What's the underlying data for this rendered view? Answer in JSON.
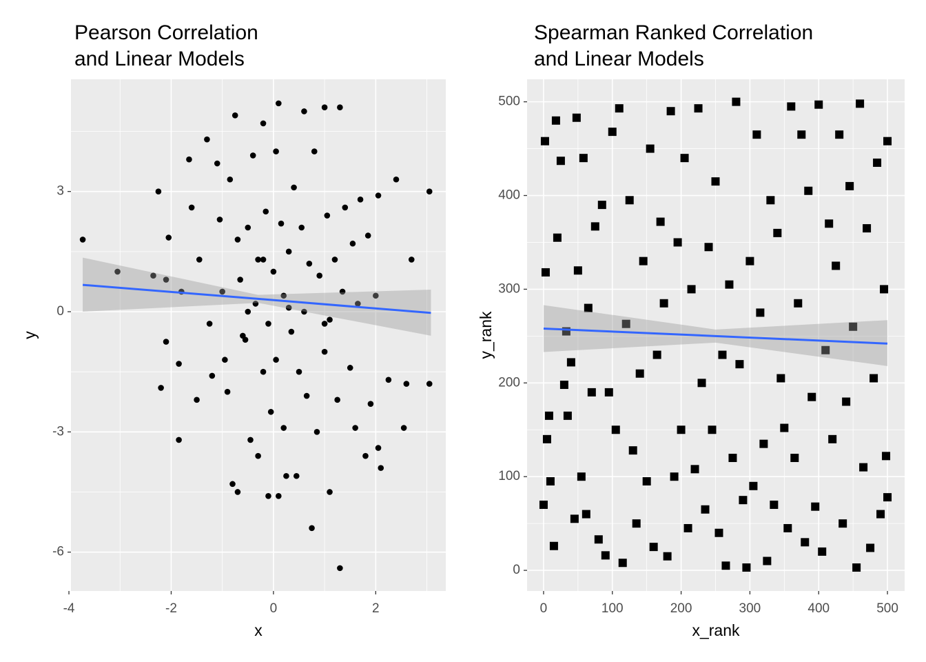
{
  "chart_data": [
    {
      "type": "scatter",
      "title": [
        "Pearson Correlation",
        "and Linear Models"
      ],
      "x_label": "x",
      "y_label": "y",
      "xlim": [
        -3.96,
        3.37
      ],
      "ylim": [
        -6.97,
        5.8
      ],
      "xticks": [
        -4,
        -2,
        0,
        2
      ],
      "yticks": [
        -6,
        -3,
        0,
        3
      ],
      "grid": true,
      "color": "#000000",
      "marker": "circle",
      "x": [
        -3.73,
        -3.05,
        -2.35,
        -2.25,
        -2.2,
        -2.1,
        -2.05,
        -2.1,
        -1.85,
        -1.85,
        -1.8,
        -1.65,
        -1.6,
        -1.5,
        -1.45,
        -1.3,
        -1.25,
        -1.2,
        -1.1,
        -1.05,
        -1.0,
        -0.95,
        -0.9,
        -0.85,
        -0.8,
        -0.75,
        -0.7,
        -0.7,
        -0.65,
        -0.6,
        -0.55,
        -0.5,
        -0.45,
        -0.4,
        -0.35,
        -0.3,
        -0.3,
        -0.2,
        -0.2,
        -0.15,
        -0.1,
        -0.05,
        -0.1,
        0.0,
        0.05,
        0.05,
        0.1,
        0.1,
        0.15,
        0.2,
        0.2,
        0.25,
        0.3,
        0.35,
        0.4,
        0.45,
        0.5,
        0.55,
        0.6,
        0.6,
        0.65,
        0.7,
        0.75,
        0.8,
        0.85,
        0.9,
        1.0,
        1.0,
        1.05,
        1.1,
        1.1,
        1.2,
        1.25,
        1.3,
        1.3,
        1.35,
        1.4,
        1.5,
        1.55,
        1.6,
        1.65,
        1.7,
        1.8,
        1.85,
        1.9,
        2.0,
        2.05,
        2.1,
        2.05,
        2.25,
        2.4,
        2.55,
        2.6,
        2.7,
        3.05,
        3.05,
        1.0,
        -0.5,
        0.3,
        -0.2
      ],
      "values": [
        1.8,
        1.0,
        0.9,
        3.0,
        -1.9,
        -0.75,
        1.85,
        0.8,
        -3.2,
        -1.3,
        0.5,
        3.8,
        2.6,
        -2.2,
        1.3,
        4.3,
        -0.3,
        -1.6,
        3.7,
        2.3,
        0.5,
        -1.2,
        -2.0,
        3.3,
        -4.3,
        4.9,
        1.8,
        -4.5,
        0.8,
        -0.6,
        -0.7,
        2.1,
        -3.2,
        3.9,
        0.2,
        -3.6,
        1.3,
        4.7,
        -1.5,
        2.5,
        -0.3,
        -2.5,
        -4.6,
        1.0,
        4.0,
        -1.2,
        5.2,
        -4.6,
        2.2,
        0.4,
        -2.9,
        -4.1,
        1.5,
        -0.5,
        3.1,
        -4.1,
        -1.5,
        2.1,
        0.0,
        5.0,
        -2.1,
        1.2,
        -5.4,
        4.0,
        -3.0,
        0.9,
        5.1,
        -1.0,
        2.4,
        -4.5,
        -0.2,
        1.3,
        -2.2,
        5.1,
        -6.4,
        0.5,
        2.6,
        -1.4,
        1.7,
        -2.9,
        0.2,
        2.8,
        -3.6,
        1.9,
        -2.3,
        0.4,
        -3.4,
        -3.9,
        2.9,
        -1.7,
        3.3,
        -2.9,
        -1.8,
        1.3,
        3.0,
        -1.8,
        -0.3,
        0.0,
        0.1,
        1.3
      ],
      "smooth": {
        "x": [
          -3.73,
          -0.3,
          3.08
        ],
        "values": [
          0.67,
          0.32,
          -0.03
        ],
        "lower": [
          0.0,
          0.22,
          -0.6
        ],
        "upper": [
          1.35,
          0.42,
          0.55
        ],
        "color": "#3366ff",
        "band_color": "#999999"
      }
    },
    {
      "type": "scatter",
      "title": [
        "Spearman Ranked Correlation",
        "and Linear Models"
      ],
      "x_label": "x_rank",
      "y_label": "y_rank",
      "xlim": [
        -24,
        525
      ],
      "ylim": [
        -22,
        524
      ],
      "xticks": [
        0,
        100,
        200,
        300,
        400,
        500
      ],
      "yticks": [
        0,
        100,
        200,
        300,
        400,
        500
      ],
      "grid": true,
      "color": "#000000",
      "marker": "square",
      "x": [
        0,
        2,
        3,
        5,
        8,
        10,
        15,
        18,
        20,
        25,
        30,
        33,
        35,
        40,
        45,
        48,
        50,
        55,
        58,
        62,
        65,
        70,
        75,
        80,
        85,
        90,
        95,
        100,
        105,
        110,
        115,
        120,
        125,
        130,
        135,
        140,
        145,
        150,
        155,
        160,
        165,
        170,
        175,
        180,
        185,
        190,
        195,
        200,
        205,
        210,
        215,
        220,
        225,
        230,
        235,
        240,
        245,
        250,
        255,
        260,
        265,
        270,
        275,
        280,
        285,
        290,
        295,
        300,
        305,
        310,
        315,
        320,
        325,
        330,
        335,
        340,
        345,
        350,
        355,
        360,
        365,
        370,
        375,
        380,
        385,
        390,
        395,
        400,
        405,
        410,
        415,
        420,
        425,
        430,
        435,
        440,
        445,
        450,
        455,
        460,
        465,
        470,
        475,
        480,
        485,
        490,
        495,
        498,
        500,
        500
      ],
      "values": [
        70,
        458,
        318,
        140,
        165,
        95,
        26,
        480,
        355,
        437,
        198,
        255,
        165,
        222,
        55,
        483,
        320,
        100,
        440,
        60,
        280,
        190,
        367,
        33,
        390,
        16,
        190,
        468,
        150,
        493,
        8,
        263,
        395,
        128,
        50,
        210,
        330,
        95,
        450,
        25,
        230,
        372,
        285,
        15,
        490,
        100,
        350,
        150,
        440,
        45,
        300,
        108,
        493,
        200,
        65,
        345,
        150,
        415,
        40,
        230,
        5,
        305,
        120,
        500,
        220,
        75,
        3,
        330,
        90,
        465,
        275,
        135,
        10,
        395,
        70,
        360,
        205,
        152,
        45,
        495,
        120,
        285,
        465,
        30,
        405,
        185,
        68,
        497,
        20,
        235,
        370,
        140,
        325,
        465,
        50,
        180,
        410,
        260,
        3,
        498,
        110,
        365,
        24,
        205,
        435,
        60,
        300,
        122,
        458,
        78
      ],
      "smooth": {
        "x": [
          0,
          250,
          500
        ],
        "values": [
          258,
          250,
          242
        ],
        "lower": [
          233,
          243,
          218
        ],
        "upper": [
          283,
          257,
          267
        ],
        "color": "#3366ff",
        "band_color": "#999999"
      }
    }
  ]
}
